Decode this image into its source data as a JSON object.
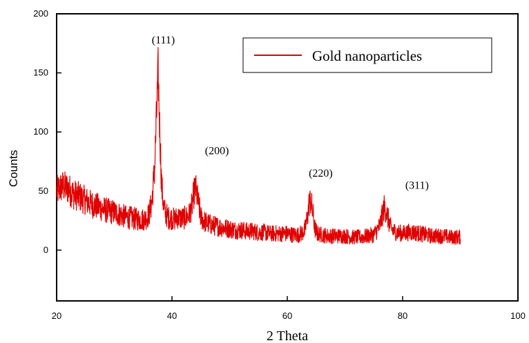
{
  "chart_data": {
    "type": "line",
    "title": "",
    "xlabel": "2 Theta",
    "ylabel": "Counts",
    "xlim": [
      20,
      100
    ],
    "ylim": [
      -43,
      200
    ],
    "x_ticks": [
      20,
      40,
      60,
      80,
      100
    ],
    "y_ticks": [
      0,
      50,
      100,
      150,
      200
    ],
    "x_tick_labels": [
      "20",
      "40",
      "60",
      "80",
      "100"
    ],
    "y_tick_labels": [
      "0",
      "50",
      "100",
      "150",
      "200"
    ],
    "grid": false,
    "legend_position": "top-right",
    "series": [
      {
        "name": "Gold nanoparticles",
        "color": "#e00000",
        "x": [
          20,
          21,
          22,
          23,
          24,
          25,
          26,
          27,
          28,
          29,
          30,
          31,
          32,
          33,
          34,
          35,
          35.5,
          36,
          36.5,
          37,
          37.3,
          37.6,
          37.9,
          38.2,
          38.6,
          39,
          39.5,
          40,
          40.5,
          41,
          41.5,
          42,
          42.5,
          43,
          43.5,
          43.8,
          44.1,
          44.5,
          45,
          45.5,
          46,
          47,
          48,
          49,
          50,
          51,
          52,
          53,
          54,
          55,
          56,
          57,
          58,
          59,
          60,
          61,
          62,
          63,
          63.5,
          63.8,
          64.1,
          64.4,
          64.8,
          65.2,
          66,
          67,
          68,
          69,
          70,
          71,
          72,
          73,
          74,
          75,
          76,
          76.5,
          76.8,
          77.1,
          77.5,
          78,
          78.5,
          79,
          80,
          81,
          82,
          83,
          84,
          85,
          86,
          87,
          88,
          89,
          90
        ],
        "y": [
          50,
          54,
          52,
          47,
          45,
          42,
          39,
          37,
          35,
          33,
          32,
          30,
          28,
          27,
          26,
          26,
          27,
          30,
          40,
          70,
          110,
          150,
          100,
          55,
          35,
          30,
          27,
          27,
          26,
          28,
          27,
          27,
          28,
          30,
          38,
          48,
          52,
          42,
          28,
          25,
          23,
          21,
          20,
          19,
          18,
          17,
          17,
          16,
          16,
          15,
          15,
          14,
          14,
          14,
          14,
          13,
          13,
          16,
          28,
          40,
          42,
          32,
          18,
          14,
          13,
          12,
          12,
          12,
          12,
          11,
          11,
          11,
          12,
          13,
          20,
          30,
          36,
          34,
          26,
          18,
          16,
          15,
          14,
          15,
          15,
          14,
          13,
          12,
          12,
          12,
          11,
          11,
          11
        ]
      }
    ],
    "annotations": [
      {
        "text": "(111)",
        "x": 38.5,
        "y": 175
      },
      {
        "text": "(200)",
        "x": 47.8,
        "y": 81
      },
      {
        "text": "(220)",
        "x": 65.8,
        "y": 62
      },
      {
        "text": "(311)",
        "x": 82.5,
        "y": 52
      }
    ]
  }
}
